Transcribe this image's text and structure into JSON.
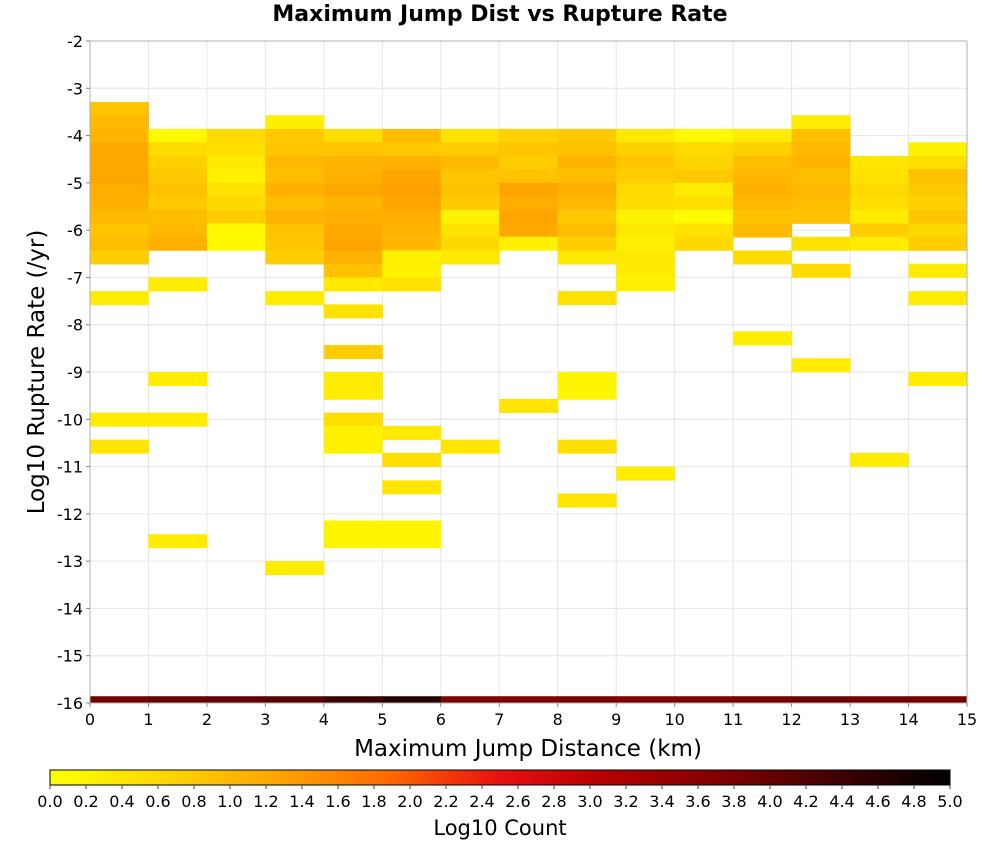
{
  "chart_data": {
    "type": "heatmap",
    "title": "Maximum Jump Dist vs Rupture Rate",
    "xlabel": "Maximum Jump Distance (km)",
    "ylabel": "Log10 Rupture Rate (/yr)",
    "colorbar_label": "Log10 Count",
    "xlim": [
      0,
      15
    ],
    "ylim": [
      -16,
      -2
    ],
    "x_ticks": [
      "0",
      "1",
      "2",
      "3",
      "4",
      "5",
      "6",
      "7",
      "8",
      "9",
      "10",
      "11",
      "12",
      "13",
      "14",
      "15"
    ],
    "y_ticks": [
      "-2",
      "-3",
      "-4",
      "-5",
      "-6",
      "-7",
      "-8",
      "-9",
      "-10",
      "-11",
      "-12",
      "-13",
      "-14",
      "-15",
      "-16"
    ],
    "colorbar_ticks": [
      "0.0",
      "0.2",
      "0.4",
      "0.6",
      "0.8",
      "1.0",
      "1.2",
      "1.4",
      "1.6",
      "1.8",
      "2.0",
      "2.2",
      "2.4",
      "2.6",
      "2.8",
      "3.0",
      "3.2",
      "3.4",
      "3.6",
      "3.8",
      "4.0",
      "4.2",
      "4.4",
      "4.6",
      "4.8",
      "5.0"
    ],
    "colorbar_range": [
      0,
      5
    ],
    "bin_width_x": 1,
    "bin_height_y": 0.2857,
    "grid": true,
    "colormap": [
      "#ffff00",
      "#ffd700",
      "#ffa500",
      "#ff6a00",
      "#e81010",
      "#b00000",
      "#800000",
      "#400000",
      "#000000"
    ],
    "columns": [
      {
        "x0": 0,
        "cells": [
          [
            -3.29,
            0.85
          ],
          [
            -3.57,
            1.0
          ],
          [
            -3.86,
            1.05
          ],
          [
            -4.14,
            1.2
          ],
          [
            -4.43,
            1.2
          ],
          [
            -4.71,
            1.25
          ],
          [
            -5.0,
            1.15
          ],
          [
            -5.29,
            1.1
          ],
          [
            -5.57,
            1.0
          ],
          [
            -5.86,
            0.85
          ],
          [
            -6.14,
            0.95
          ],
          [
            -6.43,
            0.75
          ],
          [
            -7.29,
            0.3
          ],
          [
            -9.86,
            0.3
          ],
          [
            -10.43,
            0.4
          ]
        ]
      },
      {
        "x0": 1,
        "cells": [
          [
            -3.86,
            0.1
          ],
          [
            -4.14,
            0.55
          ],
          [
            -4.43,
            0.7
          ],
          [
            -4.71,
            0.8
          ],
          [
            -5.0,
            0.9
          ],
          [
            -5.29,
            0.8
          ],
          [
            -5.57,
            0.95
          ],
          [
            -5.86,
            1.0
          ],
          [
            -6.14,
            1.1
          ],
          [
            -7.0,
            0.3
          ],
          [
            -9.0,
            0.3
          ],
          [
            -9.86,
            0.3
          ],
          [
            -12.43,
            0.3
          ]
        ]
      },
      {
        "x0": 2,
        "cells": [
          [
            -3.86,
            0.6
          ],
          [
            -4.14,
            0.5
          ],
          [
            -4.43,
            0.35
          ],
          [
            -4.71,
            0.2
          ],
          [
            -5.0,
            0.45
          ],
          [
            -5.29,
            0.6
          ],
          [
            -5.57,
            0.75
          ],
          [
            -5.86,
            0.1
          ],
          [
            -6.14,
            0.1
          ]
        ]
      },
      {
        "x0": 3,
        "cells": [
          [
            -3.57,
            0.25
          ],
          [
            -3.86,
            0.8
          ],
          [
            -4.14,
            0.85
          ],
          [
            -4.43,
            1.0
          ],
          [
            -4.71,
            0.95
          ],
          [
            -5.0,
            1.1
          ],
          [
            -5.29,
            0.95
          ],
          [
            -5.57,
            1.05
          ],
          [
            -5.86,
            0.9
          ],
          [
            -6.14,
            0.85
          ],
          [
            -6.43,
            0.75
          ],
          [
            -7.29,
            0.3
          ],
          [
            -13.0,
            0.3
          ]
        ]
      },
      {
        "x0": 4,
        "cells": [
          [
            -3.86,
            0.5
          ],
          [
            -4.14,
            0.85
          ],
          [
            -4.43,
            1.05
          ],
          [
            -4.71,
            1.1
          ],
          [
            -5.0,
            1.2
          ],
          [
            -5.29,
            1.05
          ],
          [
            -5.57,
            1.15
          ],
          [
            -5.86,
            1.2
          ],
          [
            -6.14,
            1.25
          ],
          [
            -6.43,
            1.1
          ],
          [
            -6.71,
            0.9
          ],
          [
            -7.0,
            0.35
          ],
          [
            -7.57,
            0.45
          ],
          [
            -8.43,
            0.75
          ],
          [
            -9.0,
            0.3
          ],
          [
            -9.29,
            0.3
          ],
          [
            -9.86,
            0.5
          ],
          [
            -10.14,
            0.2
          ],
          [
            -10.43,
            0.2
          ],
          [
            -12.14,
            0.15
          ],
          [
            -12.43,
            0.15
          ]
        ]
      },
      {
        "x0": 5,
        "cells": [
          [
            -3.86,
            0.95
          ],
          [
            -4.14,
            0.8
          ],
          [
            -4.43,
            1.1
          ],
          [
            -4.71,
            1.25
          ],
          [
            -5.0,
            1.3
          ],
          [
            -5.29,
            1.25
          ],
          [
            -5.57,
            1.15
          ],
          [
            -5.86,
            1.05
          ],
          [
            -6.14,
            1.0
          ],
          [
            -6.43,
            0.2
          ],
          [
            -6.71,
            0.2
          ],
          [
            -7.0,
            0.45
          ],
          [
            -10.14,
            0.35
          ],
          [
            -10.71,
            0.5
          ],
          [
            -11.29,
            0.4
          ],
          [
            -12.14,
            0.15
          ],
          [
            -12.43,
            0.15
          ]
        ]
      },
      {
        "x0": 6,
        "cells": [
          [
            -3.86,
            0.45
          ],
          [
            -4.14,
            0.75
          ],
          [
            -4.43,
            1.0
          ],
          [
            -4.71,
            0.85
          ],
          [
            -5.0,
            0.9
          ],
          [
            -5.29,
            0.8
          ],
          [
            -5.57,
            0.2
          ],
          [
            -5.86,
            0.45
          ],
          [
            -6.14,
            0.6
          ],
          [
            -6.43,
            0.35
          ],
          [
            -10.43,
            0.4
          ]
        ]
      },
      {
        "x0": 7,
        "cells": [
          [
            -3.86,
            0.7
          ],
          [
            -4.14,
            0.85
          ],
          [
            -4.43,
            0.75
          ],
          [
            -4.71,
            0.9
          ],
          [
            -5.0,
            1.25
          ],
          [
            -5.29,
            1.15
          ],
          [
            -5.57,
            1.25
          ],
          [
            -5.86,
            1.2
          ],
          [
            -6.14,
            0.2
          ],
          [
            -9.57,
            0.4
          ]
        ]
      },
      {
        "x0": 8,
        "cells": [
          [
            -3.86,
            0.8
          ],
          [
            -4.14,
            0.9
          ],
          [
            -4.43,
            1.05
          ],
          [
            -4.71,
            0.95
          ],
          [
            -5.0,
            1.1
          ],
          [
            -5.29,
            1.0
          ],
          [
            -5.57,
            0.8
          ],
          [
            -5.86,
            0.95
          ],
          [
            -6.14,
            0.75
          ],
          [
            -6.43,
            0.35
          ],
          [
            -7.29,
            0.45
          ],
          [
            -9.0,
            0.15
          ],
          [
            -9.29,
            0.15
          ],
          [
            -10.43,
            0.5
          ],
          [
            -11.57,
            0.4
          ]
        ]
      },
      {
        "x0": 9,
        "cells": [
          [
            -3.86,
            0.35
          ],
          [
            -4.14,
            0.7
          ],
          [
            -4.43,
            0.85
          ],
          [
            -4.71,
            0.75
          ],
          [
            -5.0,
            0.6
          ],
          [
            -5.29,
            0.55
          ],
          [
            -5.57,
            0.2
          ],
          [
            -5.86,
            0.35
          ],
          [
            -6.14,
            0.25
          ],
          [
            -6.43,
            0.35
          ],
          [
            -6.71,
            0.3
          ],
          [
            -7.0,
            0.2
          ],
          [
            -11.0,
            0.3
          ]
        ]
      },
      {
        "x0": 10,
        "cells": [
          [
            -3.86,
            0.1
          ],
          [
            -4.14,
            0.6
          ],
          [
            -4.43,
            0.65
          ],
          [
            -4.71,
            0.8
          ],
          [
            -5.0,
            0.3
          ],
          [
            -5.29,
            0.5
          ],
          [
            -5.57,
            0.05
          ],
          [
            -5.86,
            0.45
          ],
          [
            -6.14,
            0.6
          ]
        ]
      },
      {
        "x0": 11,
        "cells": [
          [
            -3.86,
            0.3
          ],
          [
            -4.14,
            0.7
          ],
          [
            -4.43,
            0.95
          ],
          [
            -4.71,
            1.0
          ],
          [
            -5.0,
            1.1
          ],
          [
            -5.29,
            1.0
          ],
          [
            -5.57,
            0.9
          ],
          [
            -5.86,
            1.0
          ],
          [
            -6.43,
            0.55
          ],
          [
            -8.14,
            0.3
          ]
        ]
      },
      {
        "x0": 12,
        "cells": [
          [
            -3.57,
            0.3
          ],
          [
            -3.86,
            0.9
          ],
          [
            -4.14,
            1.0
          ],
          [
            -4.43,
            1.05
          ],
          [
            -4.71,
            0.95
          ],
          [
            -5.0,
            1.0
          ],
          [
            -5.29,
            0.95
          ],
          [
            -5.57,
            0.9
          ],
          [
            -6.14,
            0.45
          ],
          [
            -6.71,
            0.55
          ],
          [
            -8.71,
            0.3
          ]
        ]
      },
      {
        "x0": 13,
        "cells": [
          [
            -4.43,
            0.4
          ],
          [
            -4.71,
            0.45
          ],
          [
            -5.0,
            0.6
          ],
          [
            -5.29,
            0.5
          ],
          [
            -5.57,
            0.3
          ],
          [
            -5.86,
            0.75
          ],
          [
            -6.14,
            0.3
          ],
          [
            -10.71,
            0.3
          ]
        ]
      },
      {
        "x0": 14,
        "cells": [
          [
            -4.14,
            0.2
          ],
          [
            -4.43,
            0.5
          ],
          [
            -4.71,
            0.9
          ],
          [
            -5.0,
            0.8
          ],
          [
            -5.29,
            0.7
          ],
          [
            -5.57,
            0.85
          ],
          [
            -5.86,
            0.6
          ],
          [
            -6.14,
            0.75
          ],
          [
            -6.71,
            0.3
          ],
          [
            -7.29,
            0.3
          ],
          [
            -9.0,
            0.3
          ]
        ]
      }
    ],
    "bottom_row": {
      "y0": -16.0,
      "y1": -15.857,
      "cells": [
        [
          0,
          3.9
        ],
        [
          1,
          4.0
        ],
        [
          2,
          4.05
        ],
        [
          3,
          4.15
        ],
        [
          4,
          4.45
        ],
        [
          5,
          4.65
        ],
        [
          6,
          3.8
        ],
        [
          7,
          3.75
        ],
        [
          8,
          3.85
        ],
        [
          9,
          3.75
        ],
        [
          10,
          3.8
        ],
        [
          11,
          3.85
        ],
        [
          12,
          3.95
        ],
        [
          13,
          3.9
        ],
        [
          14,
          3.85
        ]
      ]
    }
  }
}
